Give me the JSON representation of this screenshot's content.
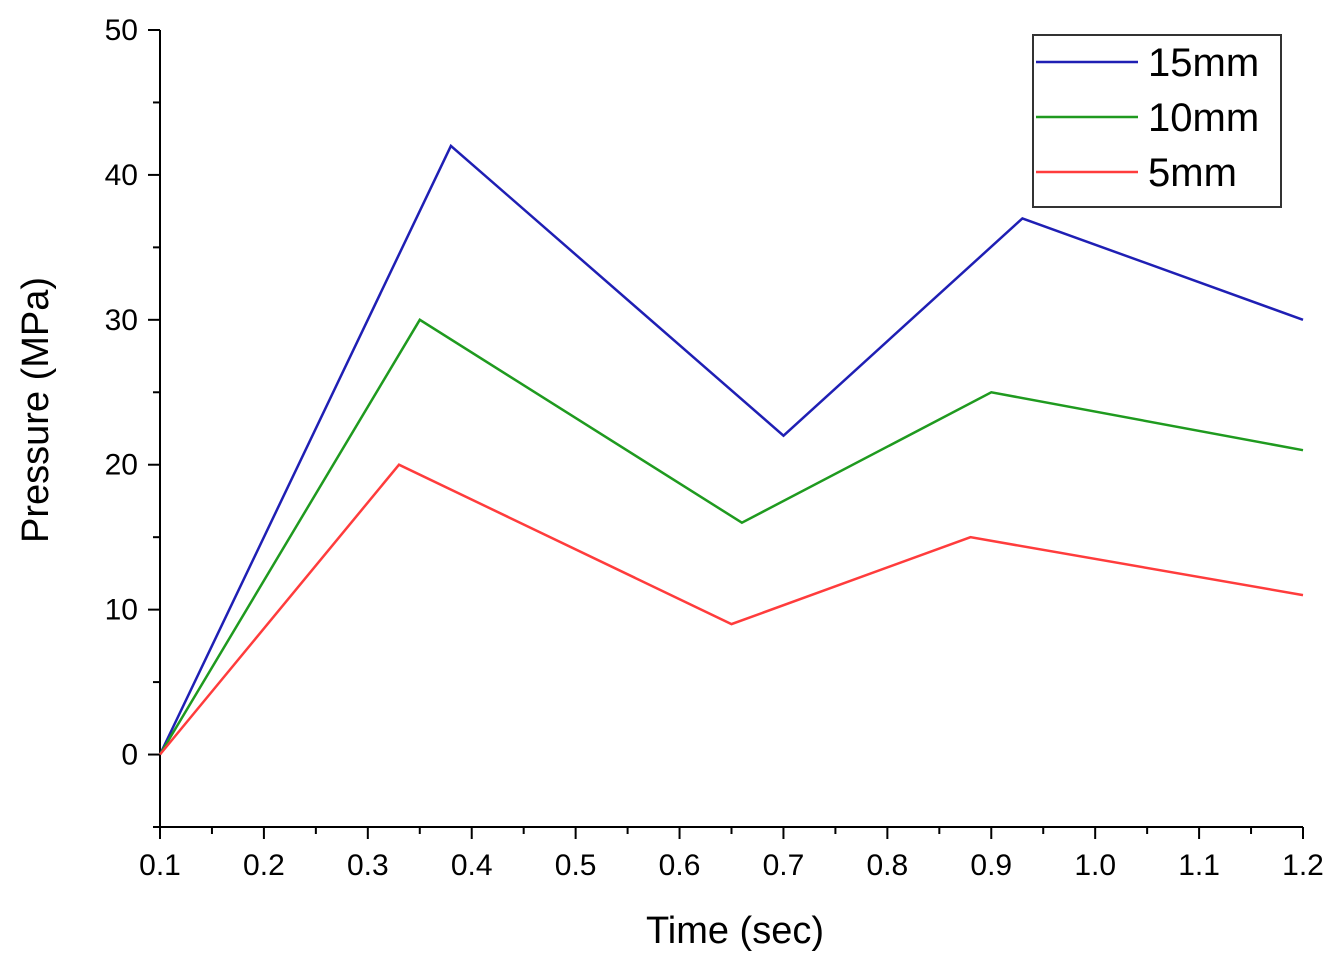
{
  "chart_data": {
    "type": "line",
    "title": "",
    "xlabel": "Time (sec)",
    "ylabel": "Pressure (MPa)",
    "xlim": [
      0.1,
      1.2
    ],
    "ylim": [
      -5,
      50
    ],
    "xticks": [
      "0.1",
      "0.2",
      "0.3",
      "0.4",
      "0.5",
      "0.6",
      "0.7",
      "0.8",
      "0.9",
      "1.0",
      "1.1",
      "1.2"
    ],
    "yticks": [
      "0",
      "10",
      "20",
      "30",
      "40",
      "50"
    ],
    "grid": false,
    "legend": "top-right",
    "series": [
      {
        "name": "15mm",
        "color": "#1f1fb4",
        "x": [
          0.1,
          0.38,
          0.7,
          0.93,
          1.2
        ],
        "y": [
          0,
          42,
          22,
          37,
          30
        ]
      },
      {
        "name": "10mm",
        "color": "#1f9a1f",
        "x": [
          0.1,
          0.35,
          0.66,
          0.9,
          1.2
        ],
        "y": [
          0,
          30,
          16,
          25,
          21
        ]
      },
      {
        "name": "5mm",
        "color": "#ff3c3c",
        "x": [
          0.1,
          0.33,
          0.65,
          0.88,
          1.2
        ],
        "y": [
          0,
          20,
          9,
          15,
          11
        ]
      }
    ]
  }
}
